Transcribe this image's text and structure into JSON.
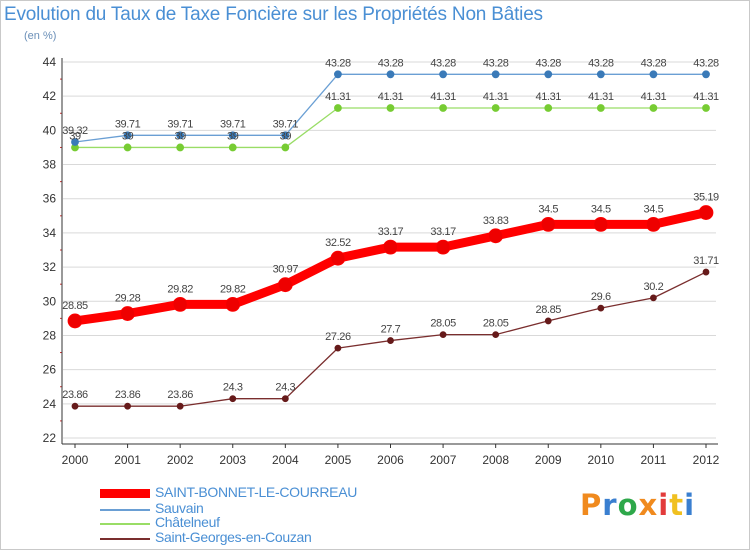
{
  "title": "Evolution du Taux de Taxe Foncière sur les Propriétés Non Bâties",
  "unit": "(en %)",
  "logo": {
    "text": "Proxiti",
    "colors": [
      "#f08a1e",
      "#3a7fd0",
      "#2ea84a",
      "#f08a1e",
      "#e23b3b",
      "#f0c020",
      "#3a7fd0"
    ]
  },
  "colors": {
    "grid": "#d9d9d9",
    "axis": "#333333",
    "frame": "#c9c9c9",
    "title": "#4a8fd4"
  },
  "chart_data": {
    "type": "line",
    "title": "Evolution du Taux de Taxe Foncière sur les Propriétés Non Bâties",
    "ylabel": "(en %)",
    "xlabel": "",
    "ylim": [
      22,
      44
    ],
    "yticks": [
      22,
      24,
      26,
      28,
      30,
      32,
      34,
      36,
      38,
      40,
      42,
      44
    ],
    "categories": [
      "2000",
      "2001",
      "2002",
      "2003",
      "2004",
      "2005",
      "2006",
      "2007",
      "2008",
      "2009",
      "2010",
      "2011",
      "2012"
    ],
    "grid": "horizontal",
    "legend": "bottom-left",
    "series": [
      {
        "name": "SAINT-BONNET-LE-COURREAU",
        "color": "#ff0000",
        "marker": "#ee0000",
        "width": 9,
        "r": 7,
        "values": [
          28.85,
          29.28,
          29.82,
          29.82,
          30.97,
          32.52,
          33.17,
          33.17,
          33.83,
          34.5,
          34.5,
          34.5,
          35.19
        ],
        "labels": [
          "28.85",
          "29.28",
          "29.82",
          "29.82",
          "30.97",
          "32.52",
          "33.17",
          "33.17",
          "33.83",
          "34.5",
          "34.5",
          "34.5",
          "35.19"
        ]
      },
      {
        "name": "Sauvain",
        "color": "#6a9fd4",
        "marker": "#3a7ab8",
        "width": 1.3,
        "r": 3.5,
        "values": [
          39.32,
          39.71,
          39.71,
          39.71,
          39.71,
          43.28,
          43.28,
          43.28,
          43.28,
          43.28,
          43.28,
          43.28,
          43.28
        ],
        "labels": [
          "39.32",
          "39.71",
          "39.71",
          "39.71",
          "39.71",
          "43.28",
          "43.28",
          "43.28",
          "43.28",
          "43.28",
          "43.28",
          "43.28",
          "43.28"
        ]
      },
      {
        "name": "Châtelneuf",
        "color": "#99dd66",
        "marker": "#77cc33",
        "width": 1.3,
        "r": 3.5,
        "values": [
          39,
          39,
          39,
          39,
          39,
          41.31,
          41.31,
          41.31,
          41.31,
          41.31,
          41.31,
          41.31,
          41.31
        ],
        "labels": [
          "39",
          "39",
          "39",
          "39",
          "39",
          "41.31",
          "41.31",
          "41.31",
          "41.31",
          "41.31",
          "41.31",
          "41.31",
          "41.31"
        ]
      },
      {
        "name": "Saint-Georges-en-Couzan",
        "color": "#7a2e2e",
        "marker": "#661a1a",
        "width": 1.3,
        "r": 3,
        "values": [
          23.86,
          23.86,
          23.86,
          24.3,
          24.3,
          27.26,
          27.7,
          28.05,
          28.05,
          28.85,
          29.6,
          30.2,
          31.71
        ],
        "labels": [
          "23.86",
          "23.86",
          "23.86",
          "24.3",
          "24.3",
          "27.26",
          "27.7",
          "28.05",
          "28.05",
          "28.85",
          "29.6",
          "30.2",
          "31.71"
        ]
      }
    ]
  }
}
